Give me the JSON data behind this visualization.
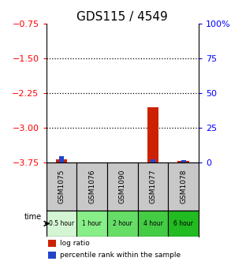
{
  "title": "GDS115 / 4549",
  "samples": [
    "GSM1075",
    "GSM1076",
    "GSM1090",
    "GSM1077",
    "GSM1078"
  ],
  "time_labels": [
    "0.5 hour",
    "1 hour",
    "2 hour",
    "4 hour",
    "6 hour"
  ],
  "log_ratio": [
    -3.68,
    0.0,
    0.0,
    -2.55,
    -3.7
  ],
  "percentile_rank": [
    5.0,
    0.0,
    0.0,
    2.5,
    2.0
  ],
  "left_ylim": [
    -3.75,
    -0.75
  ],
  "left_yticks": [
    -3.75,
    -3.0,
    -2.25,
    -1.5,
    -0.75
  ],
  "right_ylim": [
    0,
    100
  ],
  "right_yticks": [
    0,
    25,
    50,
    75,
    100
  ],
  "right_yticklabels": [
    "0",
    "25",
    "50",
    "75",
    "100%"
  ],
  "red_color": "#cc2200",
  "blue_color": "#2244cc",
  "bg_color": "#ffffff",
  "sample_bg": "#c8c8c8",
  "time_colors": [
    "#d4f5d4",
    "#88ee88",
    "#66dd66",
    "#44cc44",
    "#22bb22"
  ],
  "legend_red": "log ratio",
  "legend_blue": "percentile rank within the sample",
  "dotted_lines": [
    -1.5,
    -2.25,
    -3.0
  ],
  "title_fontsize": 11,
  "tick_fontsize": 8,
  "label_fontsize": 7
}
